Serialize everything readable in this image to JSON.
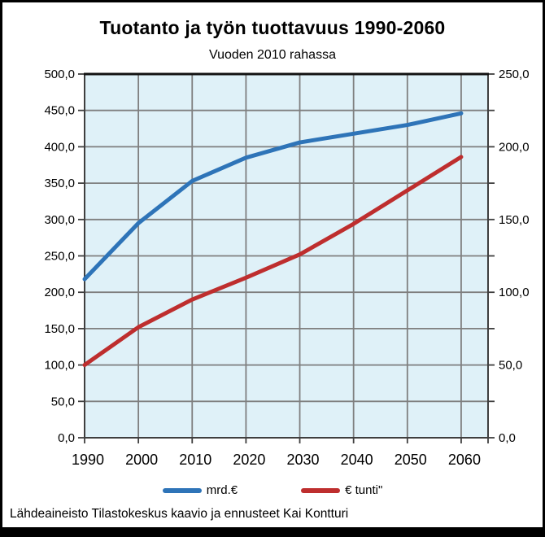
{
  "window": {
    "background": "#ffffff",
    "frame_color": "#000000"
  },
  "chart_data": {
    "type": "line",
    "title": "Tuotanto ja työn tuottavuus 1990-2060",
    "subtitle": "Vuoden 2010 rahassa",
    "x_labels": [
      "1990",
      "2000",
      "2010",
      "2020",
      "2030",
      "2040",
      "2050",
      "2060"
    ],
    "series": [
      {
        "name": "mrd.€",
        "axis": "left",
        "color": "#2E74B8",
        "values": [
          218,
          295,
          353,
          385,
          406,
          418,
          430,
          446
        ]
      },
      {
        "name": "€ tunti\"",
        "axis": "right",
        "color": "#BE2E2E",
        "values": [
          50,
          76,
          95,
          110,
          126,
          147,
          170,
          193
        ]
      }
    ],
    "left_axis": {
      "min": 0,
      "max": 500,
      "step": 50,
      "tick_labels_top_to_bottom": [
        "500,0",
        "450,0",
        "400,0",
        "350,0",
        "300,0",
        "250,0",
        "200,0",
        "150,0",
        "100,0",
        "50,0",
        "0,0"
      ]
    },
    "right_axis": {
      "min": 0,
      "max": 250,
      "step": 50,
      "tick_labels_top_to_bottom": [
        "250,0",
        "200,0",
        "150,0",
        "100,0",
        "50,0",
        "0,0"
      ]
    },
    "grid": true,
    "gridline_value_interval_left": 50,
    "plot_bg": "#DFF1F8",
    "grid_color": "#7F7F7F",
    "border_color": "#3F3F3F",
    "legend_position": "bottom"
  },
  "footer": {
    "source_text": "Lähdeaineisto Tilastokeskus kaavio  ja ennusteet Kai Kontturi"
  }
}
